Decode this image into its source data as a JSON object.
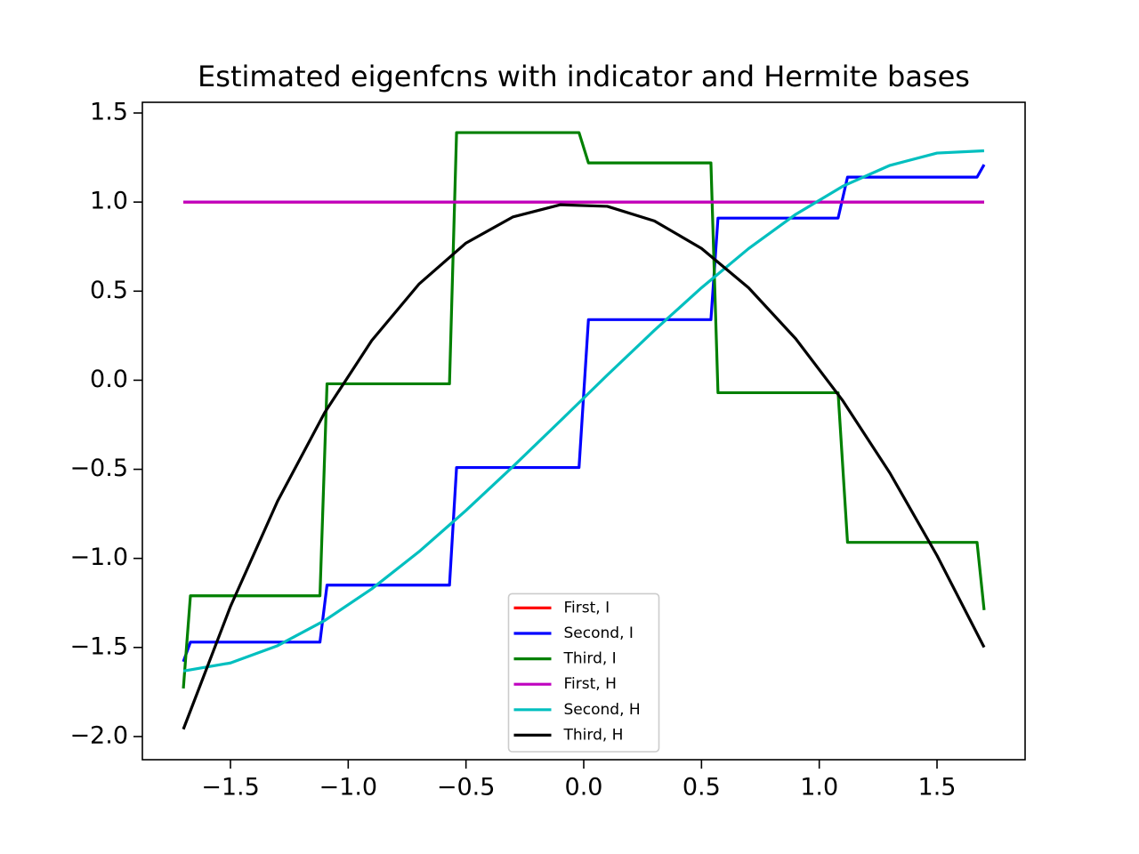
{
  "chart_data": {
    "type": "line",
    "title": "Estimated eigenfcns with indicator and Hermite bases",
    "xlim": [
      -1.874,
      1.874
    ],
    "ylim": [
      -2.13,
      1.56
    ],
    "xticks": [
      {
        "value": -1.5,
        "label": "−1.5"
      },
      {
        "value": -1.0,
        "label": "−1.0"
      },
      {
        "value": -0.5,
        "label": "−0.5"
      },
      {
        "value": 0,
        "label": "0.0"
      },
      {
        "value": 0.5,
        "label": "0.5"
      },
      {
        "value": 1.0,
        "label": "1.0"
      },
      {
        "value": 1.5,
        "label": "1.5"
      }
    ],
    "yticks": [
      {
        "value": -2.0,
        "label": "−2.0"
      },
      {
        "value": -1.5,
        "label": "−1.5"
      },
      {
        "value": -1.0,
        "label": "−1.0"
      },
      {
        "value": -0.5,
        "label": "−0.5"
      },
      {
        "value": 0,
        "label": "0.0"
      },
      {
        "value": 0.5,
        "label": "0.5"
      },
      {
        "value": 1.0,
        "label": "1.0"
      },
      {
        "value": 1.5,
        "label": "1.5"
      }
    ],
    "legend": "lower center",
    "series": [
      {
        "name": "First, I",
        "color": "#ff0000",
        "x": [
          -1.7,
          1.7
        ],
        "values": [
          1,
          1
        ]
      },
      {
        "name": "Second, I",
        "color": "#0000ff",
        "x": [
          -1.7,
          -1.67,
          -1.12,
          -1.09,
          -0.57,
          -0.54,
          -0.02,
          0.02,
          0.54,
          0.57,
          1.08,
          1.12,
          1.67,
          1.7
        ],
        "values": [
          -1.58,
          -1.47,
          -1.47,
          -1.15,
          -1.15,
          -0.49,
          -0.49,
          0.34,
          0.34,
          0.91,
          0.91,
          1.14,
          1.14,
          1.21
        ]
      },
      {
        "name": "Third, I",
        "color": "#008000",
        "x": [
          -1.7,
          -1.67,
          -1.12,
          -1.09,
          -0.57,
          -0.54,
          -0.02,
          0.02,
          0.54,
          0.57,
          1.08,
          1.12,
          1.67,
          1.7
        ],
        "values": [
          -1.73,
          -1.21,
          -1.21,
          -0.02,
          -0.02,
          1.39,
          1.39,
          1.22,
          1.22,
          -0.07,
          -0.07,
          -0.91,
          -0.91,
          -1.29
        ]
      },
      {
        "name": "First, H",
        "color": "#bf00bf",
        "x": [
          -1.7,
          1.7
        ],
        "values": [
          1,
          1
        ]
      },
      {
        "name": "Second, H",
        "color": "#00bfbf",
        "x": [
          -1.7,
          -1.5,
          -1.3,
          -1.1,
          -0.9,
          -0.7,
          -0.5,
          -0.3,
          -0.1,
          0.1,
          0.3,
          0.5,
          0.7,
          0.9,
          1.1,
          1.3,
          1.5,
          1.7
        ],
        "values": [
          -1.632,
          -1.587,
          -1.49,
          -1.349,
          -1.171,
          -0.963,
          -0.731,
          -0.484,
          -0.229,
          0.029,
          0.28,
          0.519,
          0.739,
          0.931,
          1.089,
          1.206,
          1.275,
          1.288
        ]
      },
      {
        "name": "Third, H",
        "color": "#000000",
        "x": [
          -1.7,
          -1.5,
          -1.3,
          -1.1,
          -0.9,
          -0.7,
          -0.5,
          -0.3,
          -0.1,
          0.1,
          0.3,
          0.5,
          0.7,
          0.9,
          1.1,
          1.3,
          1.5,
          1.7
        ],
        "values": [
          -1.959,
          -1.27,
          -0.679,
          -0.182,
          0.223,
          0.539,
          0.77,
          0.917,
          0.985,
          0.976,
          0.894,
          0.74,
          0.519,
          0.233,
          -0.115,
          -0.521,
          -0.984,
          -1.499
        ]
      }
    ]
  }
}
